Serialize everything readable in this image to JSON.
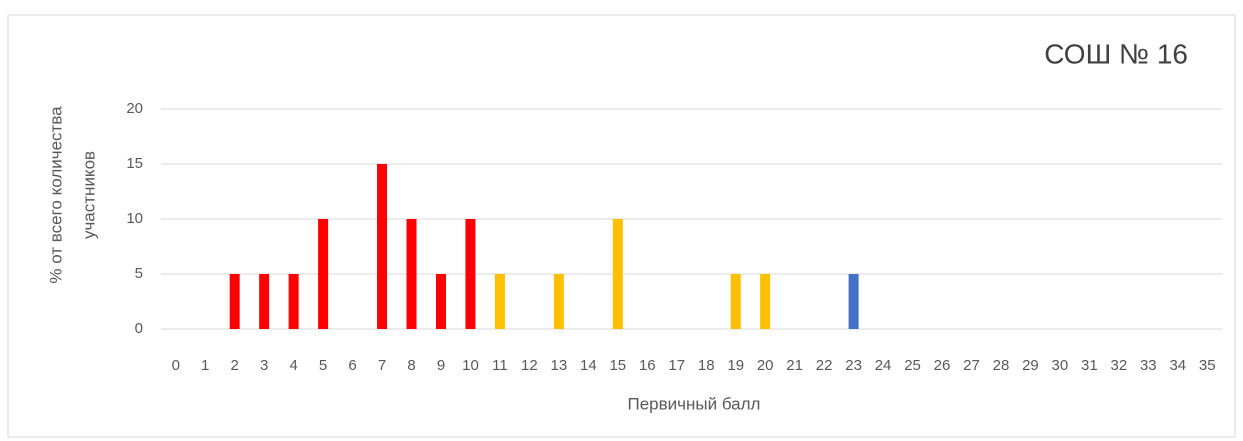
{
  "chart_data": {
    "type": "bar",
    "title": "СОШ № 16",
    "x_label": "Первичный балл",
    "y_label": [
      "% от всего количества",
      "участников"
    ],
    "categories": [
      "0",
      "1",
      "2",
      "3",
      "4",
      "5",
      "6",
      "7",
      "8",
      "9",
      "10",
      "11",
      "12",
      "13",
      "14",
      "15",
      "16",
      "17",
      "18",
      "19",
      "20",
      "21",
      "22",
      "23",
      "24",
      "25",
      "26",
      "27",
      "28",
      "29",
      "30",
      "31",
      "32",
      "33",
      "34",
      "35"
    ],
    "values": [
      0,
      0,
      5,
      5,
      5,
      10,
      0,
      15,
      10,
      5,
      10,
      5,
      0,
      5,
      0,
      10,
      0,
      0,
      0,
      5,
      5,
      0,
      0,
      5,
      0,
      0,
      0,
      0,
      0,
      0,
      0,
      0,
      0,
      0,
      0,
      0
    ],
    "colors": [
      null,
      null,
      "#ff0000",
      "#ff0000",
      "#ff0000",
      "#ff0000",
      null,
      "#ff0000",
      "#ff0000",
      "#ff0000",
      "#ff0000",
      "#ffc000",
      null,
      "#ffc000",
      null,
      "#ffc000",
      null,
      null,
      null,
      "#ffc000",
      "#ffc000",
      null,
      null,
      "#4472c4",
      null,
      null,
      null,
      null,
      null,
      null,
      null,
      null,
      null,
      null,
      null,
      null
    ],
    "ylim": [
      0,
      20
    ],
    "yticks": [
      0,
      5,
      10,
      15,
      20
    ],
    "grid": true
  }
}
